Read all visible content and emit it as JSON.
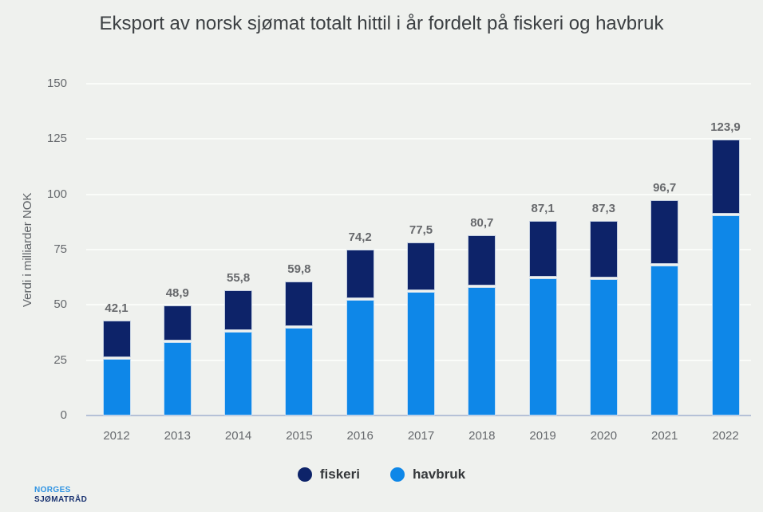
{
  "colors": {
    "background": "#eff1ee",
    "fiskeri": "#0d2369",
    "havbruk": "#0e87e8",
    "gridline": "#fafcf9",
    "axis_line": "#b5c1d7",
    "title_text": "#3c4043",
    "label_text": "#66696d",
    "logo_light_blue": "#2e93e3",
    "logo_navy": "#1b3472"
  },
  "legend": {
    "items": [
      {
        "label": "fiskeri",
        "color": "#0d2369"
      },
      {
        "label": "havbruk",
        "color": "#0e87e8"
      }
    ]
  },
  "logo": {
    "line1": "NORGES",
    "line2": "SJØMATRÅD"
  },
  "chart_data": {
    "type": "bar",
    "stacked": true,
    "title": "Eksport av norsk sjømat totalt hittil i år fordelt på fiskeri og havbruk",
    "ylabel": "Verdi i milliarder NOK",
    "xlabel": "",
    "ylim": [
      0,
      150
    ],
    "yticks": [
      0,
      25,
      50,
      75,
      100,
      125,
      150
    ],
    "grid": true,
    "legend_position": "bottom",
    "categories": [
      "2012",
      "2013",
      "2014",
      "2015",
      "2016",
      "2017",
      "2018",
      "2019",
      "2020",
      "2021",
      "2022"
    ],
    "series": [
      {
        "name": "fiskeri",
        "color": "#0d2369",
        "values": [
          16.6,
          15.9,
          18.0,
          20.1,
          21.8,
          21.6,
          22.6,
          25.0,
          25.8,
          28.9,
          33.4
        ]
      },
      {
        "name": "havbruk",
        "color": "#0e87e8",
        "values": [
          25.5,
          33.0,
          37.8,
          39.7,
          52.4,
          55.9,
          58.1,
          62.1,
          61.5,
          67.8,
          90.5
        ]
      }
    ],
    "totals": [
      42.1,
      48.9,
      55.8,
      59.8,
      74.2,
      77.5,
      80.7,
      87.1,
      87.3,
      96.7,
      123.9
    ],
    "total_labels": [
      "42,1",
      "48,9",
      "55,8",
      "59,8",
      "74,2",
      "77,5",
      "80,7",
      "87,1",
      "87,3",
      "96,7",
      "123,9"
    ]
  }
}
